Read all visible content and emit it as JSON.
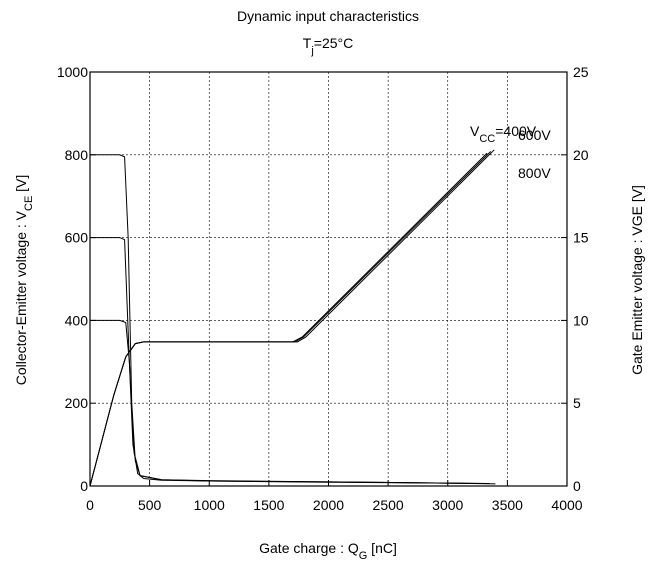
{
  "chart_data": {
    "type": "line",
    "title": "Dynamic input characteristics",
    "subtitle": [
      "T",
      "j",
      "=25°C"
    ],
    "xlabel": [
      "Gate charge  :  Q",
      "G",
      "  [nC]"
    ],
    "ylabel": [
      "Collector-Emitter voltage  :  V",
      "CE",
      "   [V]"
    ],
    "y2label": "Gate Emitter voltage : VGE [V]",
    "annotations": [
      [
        "V",
        "CC",
        "=400V"
      ],
      [
        "600V"
      ],
      [
        "800V"
      ]
    ],
    "xlim": [
      0,
      4000
    ],
    "xticks": [
      0,
      500,
      1000,
      1500,
      2000,
      2500,
      3000,
      3500,
      4000
    ],
    "ylim": [
      0,
      1000
    ],
    "yticks": [
      0,
      200,
      400,
      600,
      800,
      1000
    ],
    "y2lim": [
      0,
      25
    ],
    "y2ticks": [
      0,
      5,
      10,
      15,
      20,
      25
    ],
    "grid": true,
    "series": [
      {
        "color": "#000000",
        "x": [
          0,
          250,
          290,
          320,
          350,
          380,
          420,
          600,
          1000,
          2000,
          3000,
          3400
        ],
        "values": [
          800,
          800,
          795,
          600,
          200,
          60,
          25,
          15,
          13,
          10,
          7,
          5
        ]
      },
      {
        "color": "#000000",
        "x": [
          0,
          250,
          290,
          330,
          370,
          420,
          600,
          1000,
          2000,
          3000,
          3300
        ],
        "values": [
          600,
          600,
          595,
          300,
          80,
          25,
          15,
          12,
          10,
          7,
          6
        ]
      },
      {
        "color": "#000000",
        "x": [
          0,
          250,
          300,
          330,
          360,
          400,
          450,
          600,
          1000,
          2000,
          3000,
          3350
        ],
        "values": [
          400,
          400,
          395,
          300,
          100,
          30,
          18,
          14,
          12,
          9,
          7,
          6
        ]
      },
      {
        "color": "#000000",
        "axis": "y2",
        "x": [
          0,
          200,
          300,
          380,
          450,
          1700,
          1780,
          3330
        ],
        "values": [
          0,
          5.5,
          7.8,
          8.6,
          8.7,
          8.7,
          9.0,
          20.1
        ]
      },
      {
        "color": "#000000",
        "axis": "y2",
        "x": [
          0,
          200,
          300,
          380,
          450,
          1720,
          1790,
          3360
        ],
        "values": [
          0,
          5.5,
          7.8,
          8.6,
          8.7,
          8.7,
          9.0,
          20.2
        ]
      },
      {
        "color": "#000000",
        "axis": "y2",
        "x": [
          0,
          200,
          300,
          380,
          450,
          1740,
          1810,
          3390
        ],
        "values": [
          0,
          5.5,
          7.8,
          8.6,
          8.7,
          8.7,
          9.0,
          20.3
        ]
      }
    ]
  }
}
